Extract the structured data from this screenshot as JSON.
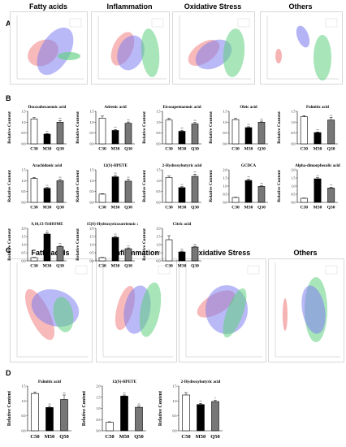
{
  "labels": {
    "A": "A",
    "B": "B",
    "C": "C",
    "D": "D"
  },
  "pca_A": [
    {
      "title": "Fatty acids"
    },
    {
      "title": "Inflammation"
    },
    {
      "title": "Oxidative Stress"
    },
    {
      "title": "Others"
    }
  ],
  "pca_C": [
    {
      "title": "Fatty acids"
    },
    {
      "title": "Inflammation"
    },
    {
      "title": "Oxidative Stress"
    },
    {
      "title": "Others"
    }
  ],
  "ylabel": "Relative Content",
  "colors": {
    "c": "#ffffff",
    "m": "#000000",
    "q": "#777777",
    "red": "#f08080",
    "blue": "#8080f0",
    "green": "#60d080"
  },
  "chart_data": [
    {
      "type": "bar",
      "title": "Docosahexaenoic acid",
      "categories": [
        "C30",
        "M30",
        "Q30"
      ],
      "values": [
        1.15,
        0.45,
        1.0
      ],
      "errors": [
        0.06,
        0.03,
        0.08
      ],
      "sig": [
        "",
        "**",
        "**"
      ],
      "ylim": [
        0,
        1.5
      ],
      "yticks": [
        "0.0",
        "0.5",
        "1.0",
        "1.5"
      ],
      "ylabel": "Relative Content"
    },
    {
      "type": "bar",
      "title": "Adrenic acid",
      "categories": [
        "C30",
        "M30",
        "Q30"
      ],
      "values": [
        1.18,
        0.62,
        0.95
      ],
      "errors": [
        0.1,
        0.04,
        0.06
      ],
      "sig": [
        "",
        "**",
        "**"
      ],
      "ylim": [
        0,
        1.5
      ],
      "yticks": [
        "0.0",
        "0.5",
        "1.0",
        "1.5"
      ],
      "ylabel": "Relative Content"
    },
    {
      "type": "bar",
      "title": "Eicosapentaenoic acid",
      "categories": [
        "C30",
        "M30",
        "Q30"
      ],
      "values": [
        1.1,
        0.58,
        0.92
      ],
      "errors": [
        0.08,
        0.05,
        0.07
      ],
      "sig": [
        "",
        "**",
        "**"
      ],
      "ylim": [
        0,
        1.5
      ],
      "yticks": [
        "0.0",
        "0.5",
        "1.0",
        "1.5"
      ],
      "ylabel": "Relative Content"
    },
    {
      "type": "bar",
      "title": "Oleic acid",
      "categories": [
        "C30",
        "M30",
        "Q30"
      ],
      "values": [
        1.12,
        0.75,
        1.0
      ],
      "errors": [
        0.05,
        0.04,
        0.05
      ],
      "sig": [
        "",
        "**",
        "**"
      ],
      "ylim": [
        0,
        1.5
      ],
      "yticks": [
        "0.0",
        "0.5",
        "1.0",
        "1.5"
      ],
      "ylabel": "Relative Content"
    },
    {
      "type": "bar",
      "title": "Palmitic acid",
      "categories": [
        "C30",
        "M30",
        "Q30"
      ],
      "values": [
        1.25,
        0.52,
        1.1
      ],
      "errors": [
        0.05,
        0.03,
        0.12
      ],
      "sig": [
        "",
        "**",
        "**"
      ],
      "ylim": [
        0,
        1.5
      ],
      "yticks": [
        "0.0",
        "0.5",
        "1.0",
        "1.5"
      ],
      "ylabel": "Relative Content"
    },
    {
      "type": "bar",
      "title": "Arachidonic acid",
      "categories": [
        "C30",
        "M30",
        "Q30"
      ],
      "values": [
        1.1,
        0.65,
        1.0
      ],
      "errors": [
        0.05,
        0.04,
        0.06
      ],
      "sig": [
        "",
        "**",
        "**"
      ],
      "ylim": [
        0,
        1.5
      ],
      "yticks": [
        "0.0",
        "0.5",
        "1.0",
        "1.5"
      ],
      "ylabel": "Relative Content"
    },
    {
      "type": "bar",
      "title": "12(S)-HPETE",
      "categories": [
        "C30",
        "M30",
        "Q30"
      ],
      "values": [
        0.38,
        1.18,
        0.98
      ],
      "errors": [
        0.02,
        0.06,
        0.08
      ],
      "sig": [
        "",
        "**",
        "**"
      ],
      "ylim": [
        0,
        1.5
      ],
      "yticks": [
        "0.0",
        "0.5",
        "1.0",
        "1.5"
      ],
      "ylabel": "Relative Content"
    },
    {
      "type": "bar",
      "title": "2-Hydroxybutyric acid",
      "categories": [
        "C30",
        "M30",
        "Q30"
      ],
      "values": [
        1.15,
        0.68,
        1.2
      ],
      "errors": [
        0.06,
        0.04,
        0.1
      ],
      "sig": [
        "",
        "**",
        "**"
      ],
      "ylim": [
        0,
        1.5
      ],
      "yticks": [
        "0.0",
        "0.5",
        "1.0",
        "1.5"
      ],
      "ylabel": "Relative Content"
    },
    {
      "type": "bar",
      "title": "GCDCA",
      "categories": [
        "C30",
        "M30",
        "Q30"
      ],
      "values": [
        0.3,
        1.35,
        0.98
      ],
      "errors": [
        0.02,
        0.08,
        0.06
      ],
      "sig": [
        "",
        "**",
        "**"
      ],
      "ylim": [
        0,
        2.0
      ],
      "yticks": [
        "0.0",
        "0.5",
        "1.0",
        "1.5",
        "2.0"
      ],
      "ylabel": "Relative Content"
    },
    {
      "type": "bar",
      "title": "Alpha-dimorphecolic acid",
      "categories": [
        "C30",
        "M30",
        "Q30"
      ],
      "values": [
        0.25,
        1.45,
        0.88
      ],
      "errors": [
        0.02,
        0.07,
        0.05
      ],
      "sig": [
        "",
        "**",
        "**"
      ],
      "ylim": [
        0,
        2.0
      ],
      "yticks": [
        "0.0",
        "0.5",
        "1.0",
        "1.5",
        "2.0"
      ],
      "ylabel": "Relative Content"
    },
    {
      "type": "bar",
      "title": "9,10,13-TriHOME",
      "categories": [
        "C30",
        "M30",
        "Q30"
      ],
      "values": [
        0.2,
        1.65,
        0.88
      ],
      "errors": [
        0.02,
        0.07,
        0.06
      ],
      "sig": [
        "",
        "**",
        "**"
      ],
      "ylim": [
        0,
        2.0
      ],
      "yticks": [
        "0.0",
        "0.5",
        "1.0",
        "1.5",
        "2.0"
      ],
      "ylabel": "Relative Content"
    },
    {
      "type": "bar",
      "title": "15(S)-Hydroxyeicosatrienoic acid",
      "categories": [
        "C30",
        "M30",
        "Q30"
      ],
      "values": [
        0.2,
        1.45,
        0.75
      ],
      "errors": [
        0.02,
        0.06,
        0.05
      ],
      "sig": [
        "",
        "**",
        "**"
      ],
      "ylim": [
        0,
        2.0
      ],
      "yticks": [
        "0.0",
        "0.5",
        "1.0",
        "1.5",
        "2.0"
      ],
      "ylabel": "Relative Content"
    },
    {
      "type": "bar",
      "title": "Citric acid",
      "categories": [
        "C30",
        "M30",
        "Q30"
      ],
      "values": [
        1.3,
        0.55,
        0.85
      ],
      "errors": [
        0.25,
        0.05,
        0.05
      ],
      "sig": [
        "",
        "**",
        "**"
      ],
      "ylim": [
        0,
        2.0
      ],
      "yticks": [
        "0.0",
        "0.5",
        "1.0",
        "1.5",
        "2.0"
      ],
      "ylabel": "Relative Content"
    },
    {
      "type": "bar",
      "title": "Palmitic acid",
      "categories": [
        "C50",
        "M50",
        "Q50"
      ],
      "values": [
        1.25,
        0.78,
        1.05
      ],
      "errors": [
        0.05,
        0.04,
        0.15
      ],
      "sig": [
        "",
        "**",
        "**"
      ],
      "ylim": [
        0,
        1.5
      ],
      "yticks": [
        "0.0",
        "0.5",
        "1.0",
        "1.5"
      ],
      "ylabel": "Relative Content"
    },
    {
      "type": "bar",
      "title": "12(S)-HPETE",
      "categories": [
        "C50",
        "M50",
        "Q50"
      ],
      "values": [
        0.38,
        1.55,
        1.05
      ],
      "errors": [
        0.02,
        0.05,
        0.05
      ],
      "sig": [
        "",
        "**",
        "**"
      ],
      "ylim": [
        0,
        2.0
      ],
      "yticks": [
        "0.0",
        "0.5",
        "1.0",
        "1.5",
        "2.0"
      ],
      "ylabel": "Relative Content"
    },
    {
      "type": "bar",
      "title": "2-Hydroxybutyric acid",
      "categories": [
        "C50",
        "M50",
        "Q50"
      ],
      "values": [
        1.2,
        0.88,
        0.98
      ],
      "errors": [
        0.08,
        0.04,
        0.05
      ],
      "sig": [
        "",
        "**",
        "*"
      ],
      "ylim": [
        0,
        1.5
      ],
      "yticks": [
        "0.0",
        "0.5",
        "1.0",
        "1.5"
      ],
      "ylabel": "Relative Content"
    }
  ]
}
